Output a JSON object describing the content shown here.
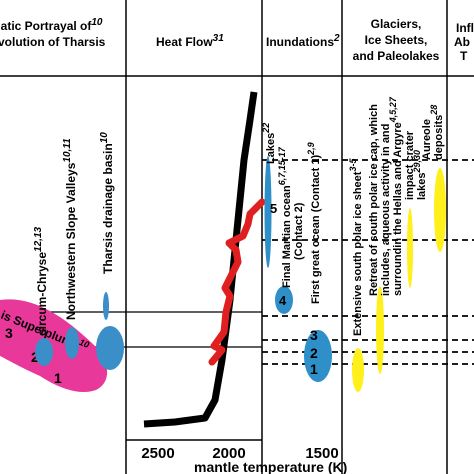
{
  "headers": {
    "col1_line1": "matic Portrayal of",
    "col1_sup": "10",
    "col1_line2": "volution of Tharsis",
    "heat_flow": "Heat Flow",
    "heat_flow_sup": "31",
    "inundations": "Inundations",
    "inundations_sup": "2",
    "glaciers_line1": "Glaciers,",
    "glaciers_line2": "Ice Sheets,",
    "glaciers_line3": "and Paleolakes",
    "cut_line1": "Infl",
    "cut_line2": "Ab",
    "cut_line3": "T"
  },
  "tharsis_labels": {
    "circum_chryse": "circum-Chryse",
    "circum_chryse_sup": "12,13",
    "nw_slope": "Northwestern Slope Valleys",
    "nw_slope_sup": "10,11",
    "drainage": "Tharsis drainage basin",
    "drainage_sup": "10",
    "superplume": "is Superplume",
    "superplume_sup": "10",
    "num_1": "1",
    "num_2": "2",
    "num_3": "3"
  },
  "inundation_labels": {
    "lakes": "Lakes",
    "lakes_sup": "22",
    "final_ocean": "Final Martian ocean",
    "final_ocean_sup": "6,7,15-17",
    "contact2": "(Contact 2)",
    "first_ocean": "First great ocean (Contact 1)",
    "first_ocean_sup": "2,9",
    "num_5": "5",
    "num_4": "4",
    "num_3": "3",
    "num_2": "2",
    "num_1": "1"
  },
  "glacier_labels": {
    "south_polar": "Extensive south polar ice sheet",
    "south_polar_sup": "3-5",
    "retreat_1": "Retreat of south polar ice cap, which",
    "retreat_2": "includes, aqueous activity in and",
    "retreat_3": "surroundin the Hellas and Argyre",
    "retreat_sup": "4,5,27",
    "impact_1": "impact crater",
    "impact_2": "lakes",
    "impact_sup": "29,30",
    "aureole_1": "Aureole",
    "aureole_2": "deposits",
    "aureole_sup": "28"
  },
  "axis": {
    "tick_2500": "2500",
    "tick_2000": "2000",
    "tick_1500": "1500",
    "title": "mantle temperature (K)"
  },
  "colors": {
    "superplume": "#e8389a",
    "basin": "#3a8fc8",
    "inundation": "#2f8fc9",
    "glacier": "#ffef1a",
    "heat_flow_red": "#e02020",
    "heat_flow_black": "#000000"
  }
}
